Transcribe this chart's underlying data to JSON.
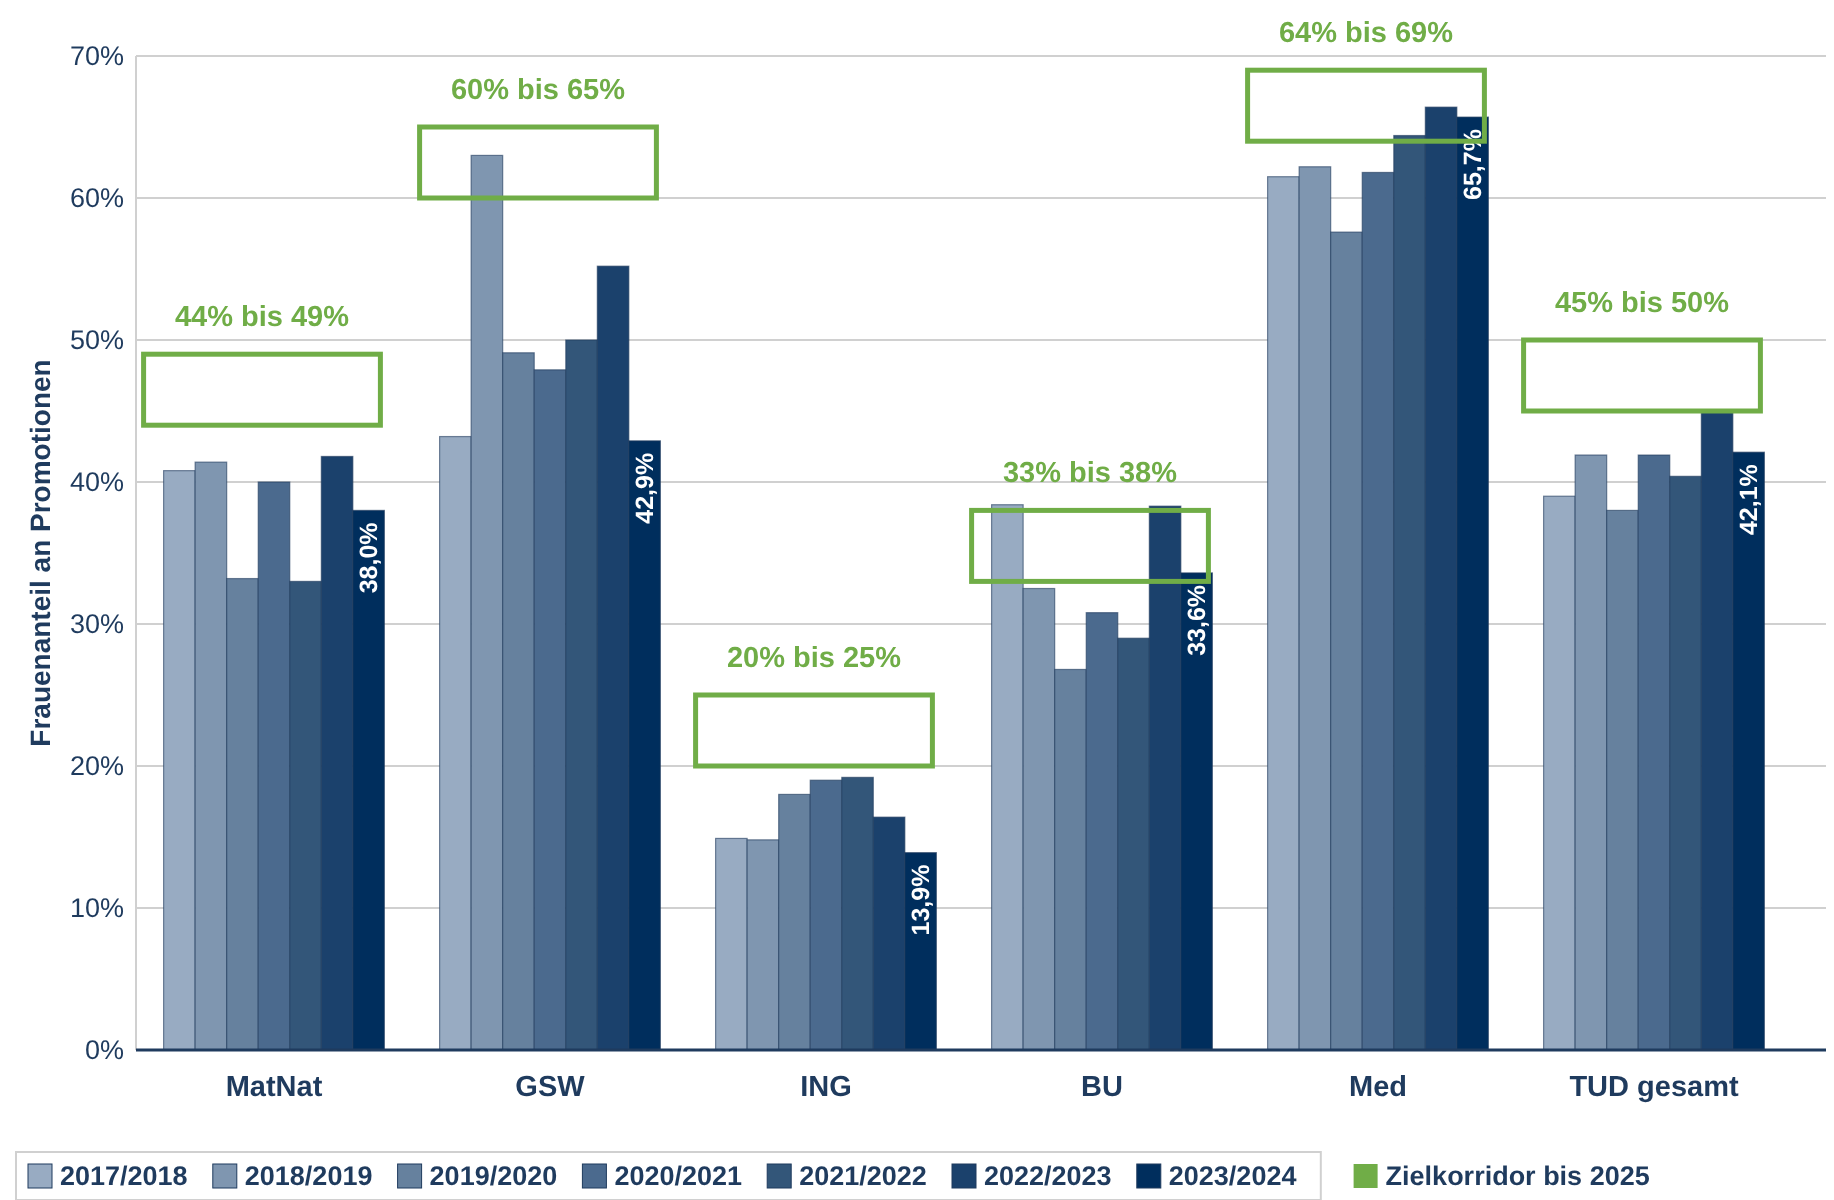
{
  "chart_data": {
    "type": "bar",
    "ylabel": "Frauenanteil an Promotionen",
    "categories": [
      "MatNat",
      "GSW",
      "ING",
      "BU",
      "Med",
      "TUD gesamt"
    ],
    "ylim": [
      0,
      70
    ],
    "yticks": [
      {
        "value": 0,
        "label": "0%"
      },
      {
        "value": 10,
        "label": "10%"
      },
      {
        "value": 20,
        "label": "20%"
      },
      {
        "value": 30,
        "label": "30%"
      },
      {
        "value": 40,
        "label": "40%"
      },
      {
        "value": 50,
        "label": "50%"
      },
      {
        "value": 60,
        "label": "60%"
      },
      {
        "value": 70,
        "label": "70%"
      }
    ],
    "grid": "y",
    "legend": "bottom",
    "series": [
      {
        "name": "2017/2018",
        "color": "#98abc2",
        "values": [
          40.8,
          43.2,
          14.9,
          38.4,
          61.5,
          39.0
        ]
      },
      {
        "name": "2018/2019",
        "color": "#7f96b0",
        "values": [
          41.4,
          63.0,
          14.8,
          32.5,
          62.2,
          41.9
        ]
      },
      {
        "name": "2019/2020",
        "color": "#66819e",
        "values": [
          33.2,
          49.1,
          18.0,
          26.8,
          57.6,
          38.0
        ]
      },
      {
        "name": "2020/2021",
        "color": "#4b6a8e",
        "values": [
          40.0,
          47.9,
          19.0,
          30.8,
          61.8,
          41.9
        ]
      },
      {
        "name": "2021/2022",
        "color": "#335679",
        "values": [
          33.0,
          50.0,
          19.2,
          29.0,
          64.4,
          40.4
        ]
      },
      {
        "name": "2022/2023",
        "color": "#1b416c",
        "values": [
          41.8,
          55.2,
          16.4,
          38.3,
          66.4,
          45.0
        ]
      },
      {
        "name": "2023/2024",
        "color": "#002e5d",
        "values": [
          38.0,
          42.9,
          13.9,
          33.6,
          65.7,
          42.1
        ],
        "value_labels": [
          "38,0%",
          "42,9%",
          "13,9%",
          "33,6%",
          "65,7%",
          "42,1%"
        ]
      },
      {
        "name": "Zielkorridor bis 2025",
        "color": "#70ad47",
        "base": [
          44,
          60,
          20,
          33,
          64,
          45
        ],
        "values": [
          5,
          5,
          5,
          5,
          5,
          5
        ]
      }
    ],
    "annotations": [
      {
        "text": "44% bis 49%",
        "x": "MatNat",
        "y": 49
      },
      {
        "text": "60% bis 65%",
        "x": "GSW",
        "y": 65
      },
      {
        "text": "20% bis 25%",
        "x": "ING",
        "y": 25
      },
      {
        "text": "33% bis 38%",
        "x": "BU",
        "y": 38
      },
      {
        "text": "64% bis 69%",
        "x": "Med",
        "y": 69
      },
      {
        "text": "45% bis 50%",
        "x": "TUD gesamt",
        "y": 50
      }
    ]
  }
}
